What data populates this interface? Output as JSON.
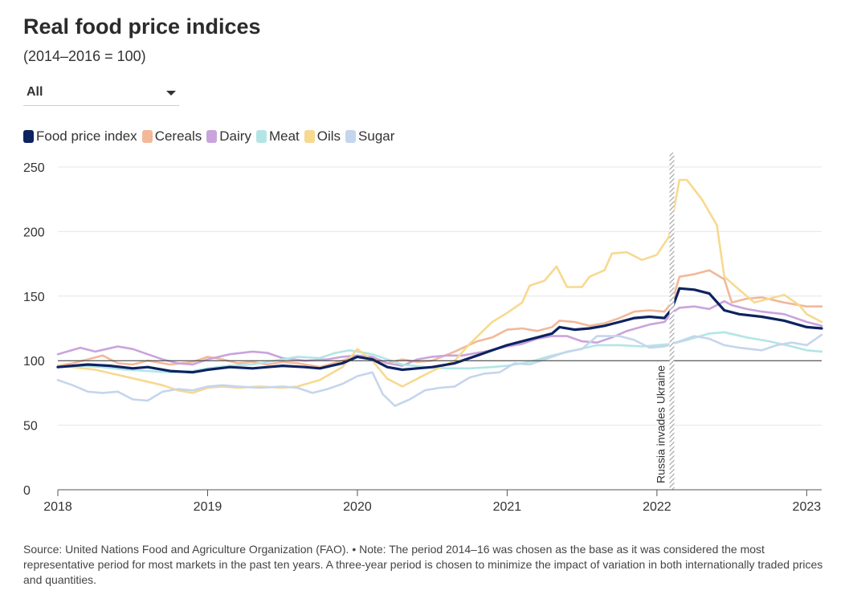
{
  "header": {
    "title": "Real food price indices",
    "subtitle": "(2014–2016 = 100)"
  },
  "filter": {
    "selected": "All"
  },
  "legend": [
    {
      "name": "Food price index",
      "color": "#0d2260"
    },
    {
      "name": "Cereals",
      "color": "#f2b898"
    },
    {
      "name": "Dairy",
      "color": "#c9a4dc"
    },
    {
      "name": "Meat",
      "color": "#b3e5e6"
    },
    {
      "name": "Oils",
      "color": "#f7d98f"
    },
    {
      "name": "Sugar",
      "color": "#c5d5ec"
    }
  ],
  "chart_data": {
    "type": "line",
    "title": "Real food price indices",
    "subtitle": "(2014–2016 = 100)",
    "xlabel": "",
    "ylabel": "",
    "x_ticks": [
      "2018",
      "2019",
      "2020",
      "2021",
      "2022",
      "2023"
    ],
    "x_range": [
      2018.0,
      2023.1
    ],
    "ylim": [
      0,
      250
    ],
    "y_ticks": [
      "0",
      "50",
      "100",
      "150",
      "200",
      "250"
    ],
    "reference_line": 100,
    "annotation": {
      "text": "Russia invades Ukraine",
      "x": 2022.1
    },
    "series": [
      {
        "name": "Food price index",
        "color": "#0d2260",
        "points": [
          [
            2018.0,
            95
          ],
          [
            2018.1,
            96
          ],
          [
            2018.2,
            97
          ],
          [
            2018.35,
            96
          ],
          [
            2018.5,
            94
          ],
          [
            2018.6,
            95
          ],
          [
            2018.75,
            92
          ],
          [
            2018.9,
            91
          ],
          [
            2019.0,
            93
          ],
          [
            2019.15,
            95
          ],
          [
            2019.3,
            94
          ],
          [
            2019.4,
            95
          ],
          [
            2019.5,
            96
          ],
          [
            2019.65,
            95
          ],
          [
            2019.75,
            94
          ],
          [
            2019.9,
            98
          ],
          [
            2020.0,
            103
          ],
          [
            2020.1,
            101
          ],
          [
            2020.2,
            95
          ],
          [
            2020.3,
            93
          ],
          [
            2020.4,
            94
          ],
          [
            2020.5,
            95
          ],
          [
            2020.65,
            98
          ],
          [
            2020.8,
            104
          ],
          [
            2020.9,
            108
          ],
          [
            2021.0,
            112
          ],
          [
            2021.1,
            115
          ],
          [
            2021.2,
            118
          ],
          [
            2021.3,
            121
          ],
          [
            2021.35,
            126
          ],
          [
            2021.45,
            124
          ],
          [
            2021.55,
            125
          ],
          [
            2021.65,
            127
          ],
          [
            2021.75,
            130
          ],
          [
            2021.85,
            133
          ],
          [
            2021.95,
            134
          ],
          [
            2022.05,
            133
          ],
          [
            2022.1,
            140
          ],
          [
            2022.15,
            156
          ],
          [
            2022.25,
            155
          ],
          [
            2022.35,
            152
          ],
          [
            2022.45,
            139
          ],
          [
            2022.55,
            136
          ],
          [
            2022.7,
            134
          ],
          [
            2022.85,
            131
          ],
          [
            2023.0,
            126
          ],
          [
            2023.1,
            125
          ]
        ]
      },
      {
        "name": "Cereals",
        "color": "#f2b898",
        "points": [
          [
            2018.0,
            96
          ],
          [
            2018.1,
            98
          ],
          [
            2018.2,
            101
          ],
          [
            2018.3,
            104
          ],
          [
            2018.4,
            98
          ],
          [
            2018.5,
            97
          ],
          [
            2018.6,
            100
          ],
          [
            2018.75,
            97
          ],
          [
            2018.9,
            99
          ],
          [
            2019.0,
            103
          ],
          [
            2019.1,
            101
          ],
          [
            2019.2,
            98
          ],
          [
            2019.3,
            99
          ],
          [
            2019.4,
            97
          ],
          [
            2019.5,
            99
          ],
          [
            2019.6,
            98
          ],
          [
            2019.75,
            95
          ],
          [
            2019.9,
            100
          ],
          [
            2020.0,
            104
          ],
          [
            2020.1,
            102
          ],
          [
            2020.2,
            98
          ],
          [
            2020.3,
            101
          ],
          [
            2020.4,
            99
          ],
          [
            2020.5,
            100
          ],
          [
            2020.65,
            107
          ],
          [
            2020.8,
            115
          ],
          [
            2020.9,
            118
          ],
          [
            2021.0,
            124
          ],
          [
            2021.1,
            125
          ],
          [
            2021.2,
            123
          ],
          [
            2021.3,
            126
          ],
          [
            2021.35,
            131
          ],
          [
            2021.45,
            130
          ],
          [
            2021.55,
            127
          ],
          [
            2021.65,
            129
          ],
          [
            2021.75,
            133
          ],
          [
            2021.85,
            138
          ],
          [
            2021.95,
            139
          ],
          [
            2022.05,
            138
          ],
          [
            2022.1,
            145
          ],
          [
            2022.15,
            165
          ],
          [
            2022.25,
            167
          ],
          [
            2022.35,
            170
          ],
          [
            2022.45,
            163
          ],
          [
            2022.5,
            145
          ],
          [
            2022.6,
            148
          ],
          [
            2022.7,
            149
          ],
          [
            2022.85,
            145
          ],
          [
            2023.0,
            142
          ],
          [
            2023.1,
            142
          ]
        ]
      },
      {
        "name": "Dairy",
        "color": "#c9a4dc",
        "points": [
          [
            2018.0,
            105
          ],
          [
            2018.15,
            110
          ],
          [
            2018.25,
            107
          ],
          [
            2018.4,
            111
          ],
          [
            2018.5,
            109
          ],
          [
            2018.6,
            105
          ],
          [
            2018.7,
            101
          ],
          [
            2018.8,
            98
          ],
          [
            2018.9,
            97
          ],
          [
            2019.0,
            101
          ],
          [
            2019.15,
            105
          ],
          [
            2019.3,
            107
          ],
          [
            2019.4,
            106
          ],
          [
            2019.5,
            102
          ],
          [
            2019.65,
            100
          ],
          [
            2019.8,
            101
          ],
          [
            2019.9,
            103
          ],
          [
            2020.0,
            104
          ],
          [
            2020.1,
            103
          ],
          [
            2020.2,
            98
          ],
          [
            2020.3,
            96
          ],
          [
            2020.4,
            101
          ],
          [
            2020.5,
            103
          ],
          [
            2020.6,
            104
          ],
          [
            2020.7,
            104
          ],
          [
            2020.85,
            107
          ],
          [
            2021.0,
            111
          ],
          [
            2021.1,
            113
          ],
          [
            2021.2,
            117
          ],
          [
            2021.3,
            119
          ],
          [
            2021.4,
            119
          ],
          [
            2021.5,
            115
          ],
          [
            2021.6,
            114
          ],
          [
            2021.7,
            118
          ],
          [
            2021.8,
            123
          ],
          [
            2021.95,
            128
          ],
          [
            2022.05,
            130
          ],
          [
            2022.1,
            137
          ],
          [
            2022.15,
            141
          ],
          [
            2022.25,
            142
          ],
          [
            2022.35,
            140
          ],
          [
            2022.45,
            146
          ],
          [
            2022.5,
            143
          ],
          [
            2022.6,
            140
          ],
          [
            2022.7,
            138
          ],
          [
            2022.85,
            136
          ],
          [
            2023.0,
            130
          ],
          [
            2023.1,
            127
          ]
        ]
      },
      {
        "name": "Meat",
        "color": "#b3e5e6",
        "points": [
          [
            2018.0,
            95
          ],
          [
            2018.15,
            96
          ],
          [
            2018.3,
            95
          ],
          [
            2018.45,
            93
          ],
          [
            2018.6,
            92
          ],
          [
            2018.75,
            91
          ],
          [
            2018.9,
            92
          ],
          [
            2019.0,
            94
          ],
          [
            2019.15,
            96
          ],
          [
            2019.3,
            97
          ],
          [
            2019.45,
            100
          ],
          [
            2019.6,
            103
          ],
          [
            2019.75,
            102
          ],
          [
            2019.85,
            106
          ],
          [
            2019.95,
            108
          ],
          [
            2020.1,
            105
          ],
          [
            2020.2,
            101
          ],
          [
            2020.3,
            97
          ],
          [
            2020.45,
            95
          ],
          [
            2020.6,
            94
          ],
          [
            2020.75,
            94
          ],
          [
            2020.9,
            95
          ],
          [
            2021.0,
            96
          ],
          [
            2021.15,
            99
          ],
          [
            2021.3,
            104
          ],
          [
            2021.45,
            108
          ],
          [
            2021.6,
            112
          ],
          [
            2021.75,
            112
          ],
          [
            2021.9,
            111
          ],
          [
            2022.0,
            112
          ],
          [
            2022.1,
            113
          ],
          [
            2022.2,
            116
          ],
          [
            2022.35,
            121
          ],
          [
            2022.45,
            122
          ],
          [
            2022.6,
            118
          ],
          [
            2022.75,
            115
          ],
          [
            2022.9,
            111
          ],
          [
            2023.0,
            108
          ],
          [
            2023.1,
            107
          ]
        ]
      },
      {
        "name": "Oils",
        "color": "#f7d98f",
        "points": [
          [
            2018.0,
            96
          ],
          [
            2018.1,
            95
          ],
          [
            2018.25,
            93
          ],
          [
            2018.4,
            89
          ],
          [
            2018.55,
            85
          ],
          [
            2018.7,
            81
          ],
          [
            2018.8,
            77
          ],
          [
            2018.9,
            75
          ],
          [
            2019.0,
            79
          ],
          [
            2019.1,
            80
          ],
          [
            2019.2,
            79
          ],
          [
            2019.35,
            80
          ],
          [
            2019.5,
            79
          ],
          [
            2019.6,
            80
          ],
          [
            2019.75,
            85
          ],
          [
            2019.9,
            95
          ],
          [
            2020.0,
            109
          ],
          [
            2020.1,
            100
          ],
          [
            2020.2,
            86
          ],
          [
            2020.3,
            80
          ],
          [
            2020.4,
            86
          ],
          [
            2020.5,
            92
          ],
          [
            2020.65,
            100
          ],
          [
            2020.75,
            113
          ],
          [
            2020.9,
            130
          ],
          [
            2021.0,
            137
          ],
          [
            2021.1,
            145
          ],
          [
            2021.15,
            158
          ],
          [
            2021.25,
            162
          ],
          [
            2021.33,
            173
          ],
          [
            2021.4,
            157
          ],
          [
            2021.5,
            157
          ],
          [
            2021.55,
            165
          ],
          [
            2021.65,
            170
          ],
          [
            2021.7,
            183
          ],
          [
            2021.8,
            184
          ],
          [
            2021.9,
            178
          ],
          [
            2022.0,
            182
          ],
          [
            2022.08,
            196
          ],
          [
            2022.15,
            240
          ],
          [
            2022.2,
            240
          ],
          [
            2022.3,
            225
          ],
          [
            2022.4,
            205
          ],
          [
            2022.45,
            165
          ],
          [
            2022.55,
            155
          ],
          [
            2022.65,
            145
          ],
          [
            2022.75,
            148
          ],
          [
            2022.85,
            151
          ],
          [
            2022.95,
            143
          ],
          [
            2023.0,
            136
          ],
          [
            2023.1,
            130
          ]
        ]
      },
      {
        "name": "Sugar",
        "color": "#c5d5ec",
        "points": [
          [
            2018.0,
            85
          ],
          [
            2018.1,
            81
          ],
          [
            2018.2,
            76
          ],
          [
            2018.3,
            75
          ],
          [
            2018.4,
            76
          ],
          [
            2018.5,
            70
          ],
          [
            2018.6,
            69
          ],
          [
            2018.7,
            76
          ],
          [
            2018.8,
            78
          ],
          [
            2018.9,
            77
          ],
          [
            2019.0,
            80
          ],
          [
            2019.1,
            81
          ],
          [
            2019.2,
            80
          ],
          [
            2019.35,
            79
          ],
          [
            2019.5,
            80
          ],
          [
            2019.6,
            79
          ],
          [
            2019.7,
            75
          ],
          [
            2019.8,
            78
          ],
          [
            2019.9,
            82
          ],
          [
            2020.0,
            88
          ],
          [
            2020.1,
            91
          ],
          [
            2020.17,
            74
          ],
          [
            2020.25,
            65
          ],
          [
            2020.35,
            70
          ],
          [
            2020.45,
            77
          ],
          [
            2020.55,
            79
          ],
          [
            2020.65,
            80
          ],
          [
            2020.75,
            87
          ],
          [
            2020.85,
            90
          ],
          [
            2020.95,
            91
          ],
          [
            2021.05,
            98
          ],
          [
            2021.15,
            97
          ],
          [
            2021.3,
            103
          ],
          [
            2021.4,
            107
          ],
          [
            2021.5,
            109
          ],
          [
            2021.6,
            119
          ],
          [
            2021.75,
            119
          ],
          [
            2021.85,
            116
          ],
          [
            2021.95,
            110
          ],
          [
            2022.05,
            111
          ],
          [
            2022.15,
            115
          ],
          [
            2022.25,
            119
          ],
          [
            2022.35,
            117
          ],
          [
            2022.45,
            112
          ],
          [
            2022.55,
            110
          ],
          [
            2022.7,
            108
          ],
          [
            2022.8,
            112
          ],
          [
            2022.9,
            114
          ],
          [
            2023.0,
            112
          ],
          [
            2023.1,
            120
          ]
        ]
      }
    ]
  },
  "source": {
    "text": "Source: United Nations Food and Agriculture Organization (FAO). • Note: The period 2014–16 was chosen as the base as it was considered the most representative period for most markets in the past ten years. A three-year period is chosen to minimize the impact of variation in both internationally traded prices and quantities."
  }
}
